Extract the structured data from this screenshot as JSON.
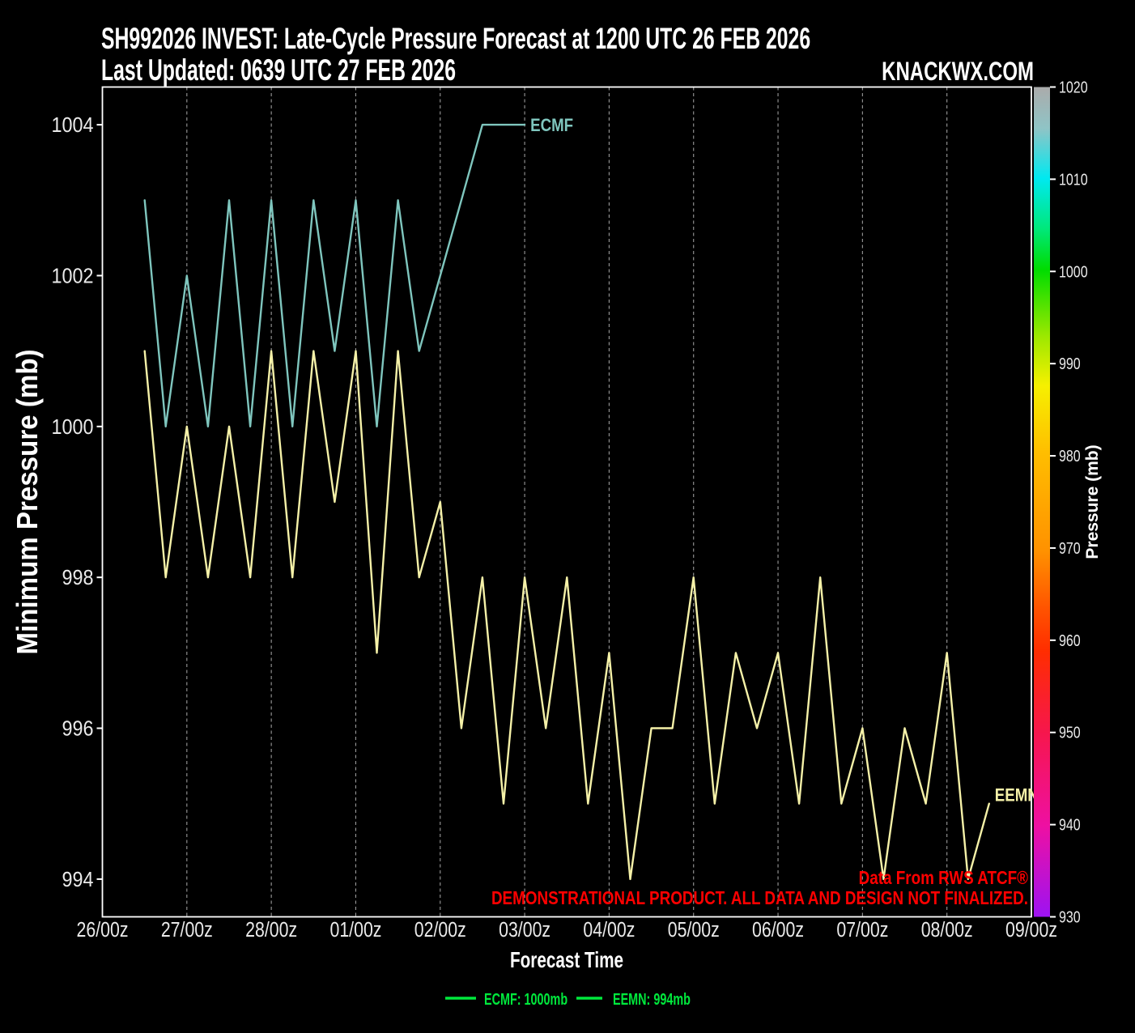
{
  "header": {
    "title": "SH992026 INVEST: Late-Cycle Pressure Forecast at 1200 UTC 26 FEB 2026",
    "subtitle": "Last Updated: 0639 UTC 27 FEB 2026",
    "brand": "KNACKWX.COM"
  },
  "chart_data": {
    "type": "line",
    "xlabel": "Forecast Time",
    "ylabel": "Minimum Pressure (mb)",
    "x_tick_labels": [
      "26/00z",
      "27/00z",
      "28/00z",
      "01/00z",
      "02/00z",
      "03/00z",
      "04/00z",
      "05/00z",
      "06/00z",
      "07/00z",
      "08/00z",
      "09/00z"
    ],
    "x_range_days": [
      0,
      11
    ],
    "ylim": [
      993.5,
      1004.5
    ],
    "y_ticks": [
      994,
      996,
      998,
      1000,
      1002,
      1004
    ],
    "grid": "vertical-dashed",
    "series": [
      {
        "name": "ECMF",
        "color": "#7fc6be",
        "start_day": 0.5,
        "step_days": 0.25,
        "values": [
          1003,
          1000,
          1002,
          1000,
          1003,
          1000,
          1003,
          1000,
          1003,
          1001,
          1003,
          1000,
          1003,
          1001,
          1002,
          1003,
          1004,
          1004,
          1004
        ]
      },
      {
        "name": "EEMN",
        "color": "#f5f1a8",
        "start_day": 0.5,
        "step_days": 0.25,
        "values": [
          1001,
          998,
          1000,
          998,
          1000,
          998,
          1001,
          998,
          1001,
          999,
          1001,
          997,
          1001,
          998,
          999,
          996,
          998,
          995,
          998,
          996,
          998,
          995,
          997,
          994,
          996,
          996,
          998,
          995,
          997,
          996,
          997,
          995,
          998,
          995,
          996,
          994,
          996,
          995,
          997,
          994,
          995
        ]
      }
    ],
    "colorbar": {
      "label": "Pressure (mb)",
      "min": 930,
      "max": 1020,
      "ticks": [
        1020,
        1010,
        1000,
        990,
        980,
        970,
        960,
        950,
        940,
        930
      ],
      "gradient_stops": [
        {
          "pos": 0,
          "color": "#ababab"
        },
        {
          "pos": 5,
          "color": "#8fc4c6"
        },
        {
          "pos": 11,
          "color": "#00e9f0"
        },
        {
          "pos": 17,
          "color": "#00e87c"
        },
        {
          "pos": 22,
          "color": "#00dc00"
        },
        {
          "pos": 30,
          "color": "#9ce800"
        },
        {
          "pos": 36,
          "color": "#f6f000"
        },
        {
          "pos": 44,
          "color": "#ffbe00"
        },
        {
          "pos": 56,
          "color": "#ff9100"
        },
        {
          "pos": 63,
          "color": "#ff5200"
        },
        {
          "pos": 68,
          "color": "#ff2d00"
        },
        {
          "pos": 78,
          "color": "#f6164e"
        },
        {
          "pos": 89,
          "color": "#ee10a2"
        },
        {
          "pos": 100,
          "color": "#9d13f2"
        }
      ]
    }
  },
  "annotations": {
    "watermark_line1": "Data From RWS ATCF®",
    "watermark_line2": "DEMONSTRATIONAL PRODUCT. ALL DATA AND DESIGN NOT FINALIZED."
  },
  "legend": {
    "color": "#00e83c",
    "items": [
      {
        "label": "ECMF: 1000mb"
      },
      {
        "label": "EEMN: 994mb"
      }
    ]
  }
}
